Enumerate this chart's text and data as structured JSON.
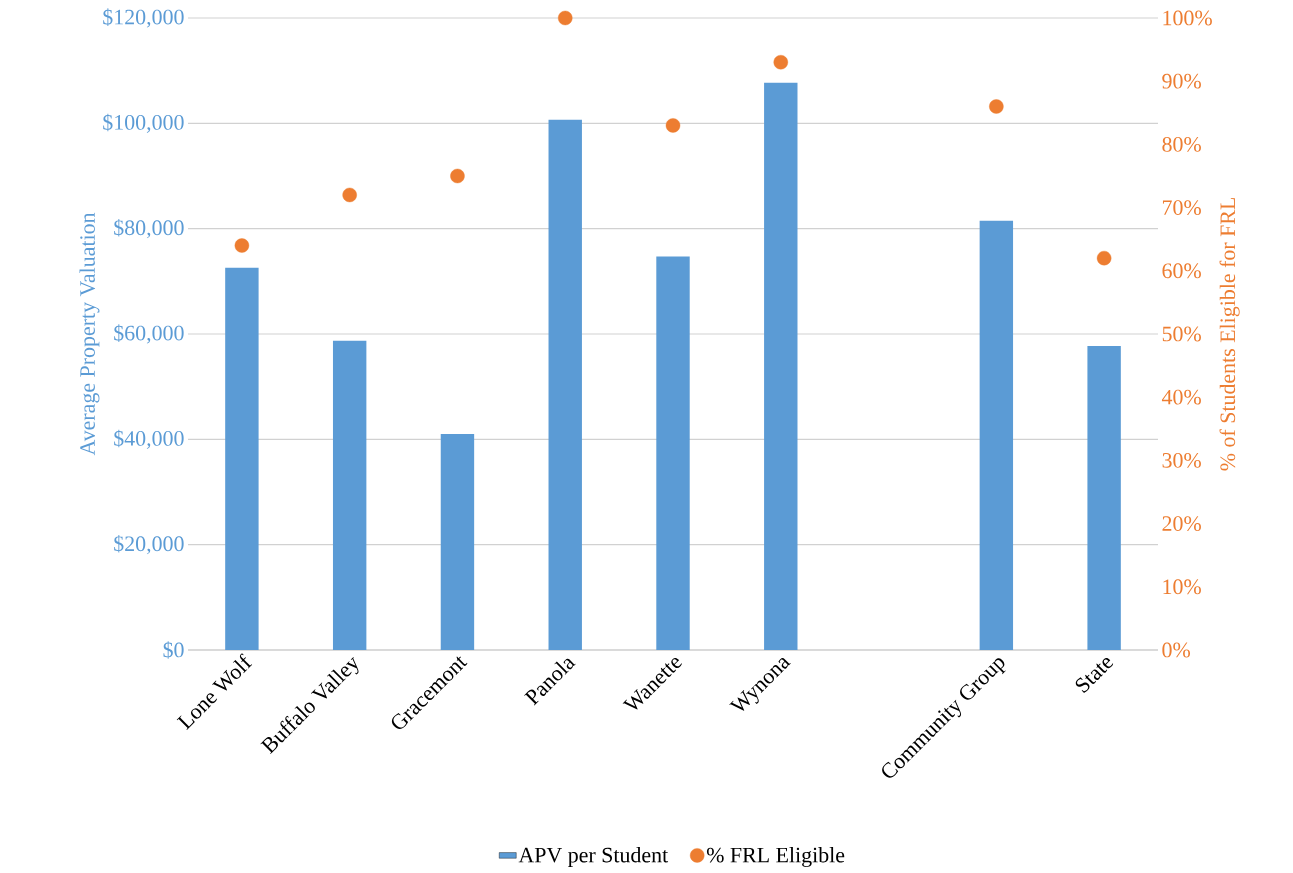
{
  "chart_data": {
    "type": "bar",
    "categories": [
      "Lone Wolf",
      "Buffalo Valley",
      "Gracemont",
      "Panola",
      "Wanette",
      "Wynona",
      null,
      "Community Group",
      "State"
    ],
    "series": [
      {
        "name": "APV per Student",
        "color": "#5b9bd5",
        "values": [
          72600,
          58700,
          41000,
          100700,
          74700,
          107700,
          null,
          81500,
          57700
        ]
      },
      {
        "name": "% FRL Eligible",
        "color": "#ed7d31",
        "type": "scatter",
        "axis": "y2",
        "marker": "circle",
        "values": [
          64,
          72,
          75,
          100,
          83,
          93,
          null,
          86,
          62
        ]
      }
    ],
    "ylabel": "Average Property Valuation",
    "y2label": "% of Students Eligible for FRL",
    "ylim": [
      0,
      120000
    ],
    "yticks": [
      {
        "value": 0,
        "label": "$0"
      },
      {
        "value": 20000,
        "label": "$20,000"
      },
      {
        "value": 40000,
        "label": "$40,000"
      },
      {
        "value": 60000,
        "label": "$60,000"
      },
      {
        "value": 80000,
        "label": "$80,000"
      },
      {
        "value": 100000,
        "label": "$100,000"
      },
      {
        "value": 120000,
        "label": "$120,000"
      }
    ],
    "y2lim": [
      0,
      100
    ],
    "y2ticks": [
      {
        "value": 0,
        "label": "0%"
      },
      {
        "value": 10,
        "label": "10%"
      },
      {
        "value": 20,
        "label": "20%"
      },
      {
        "value": 30,
        "label": "30%"
      },
      {
        "value": 40,
        "label": "40%"
      },
      {
        "value": 50,
        "label": "50%"
      },
      {
        "value": 60,
        "label": "60%"
      },
      {
        "value": 70,
        "label": "70%"
      },
      {
        "value": 80,
        "label": "80%"
      },
      {
        "value": 90,
        "label": "90%"
      },
      {
        "value": 100,
        "label": "100%"
      }
    ],
    "grid": "y",
    "legend": "bottom"
  }
}
